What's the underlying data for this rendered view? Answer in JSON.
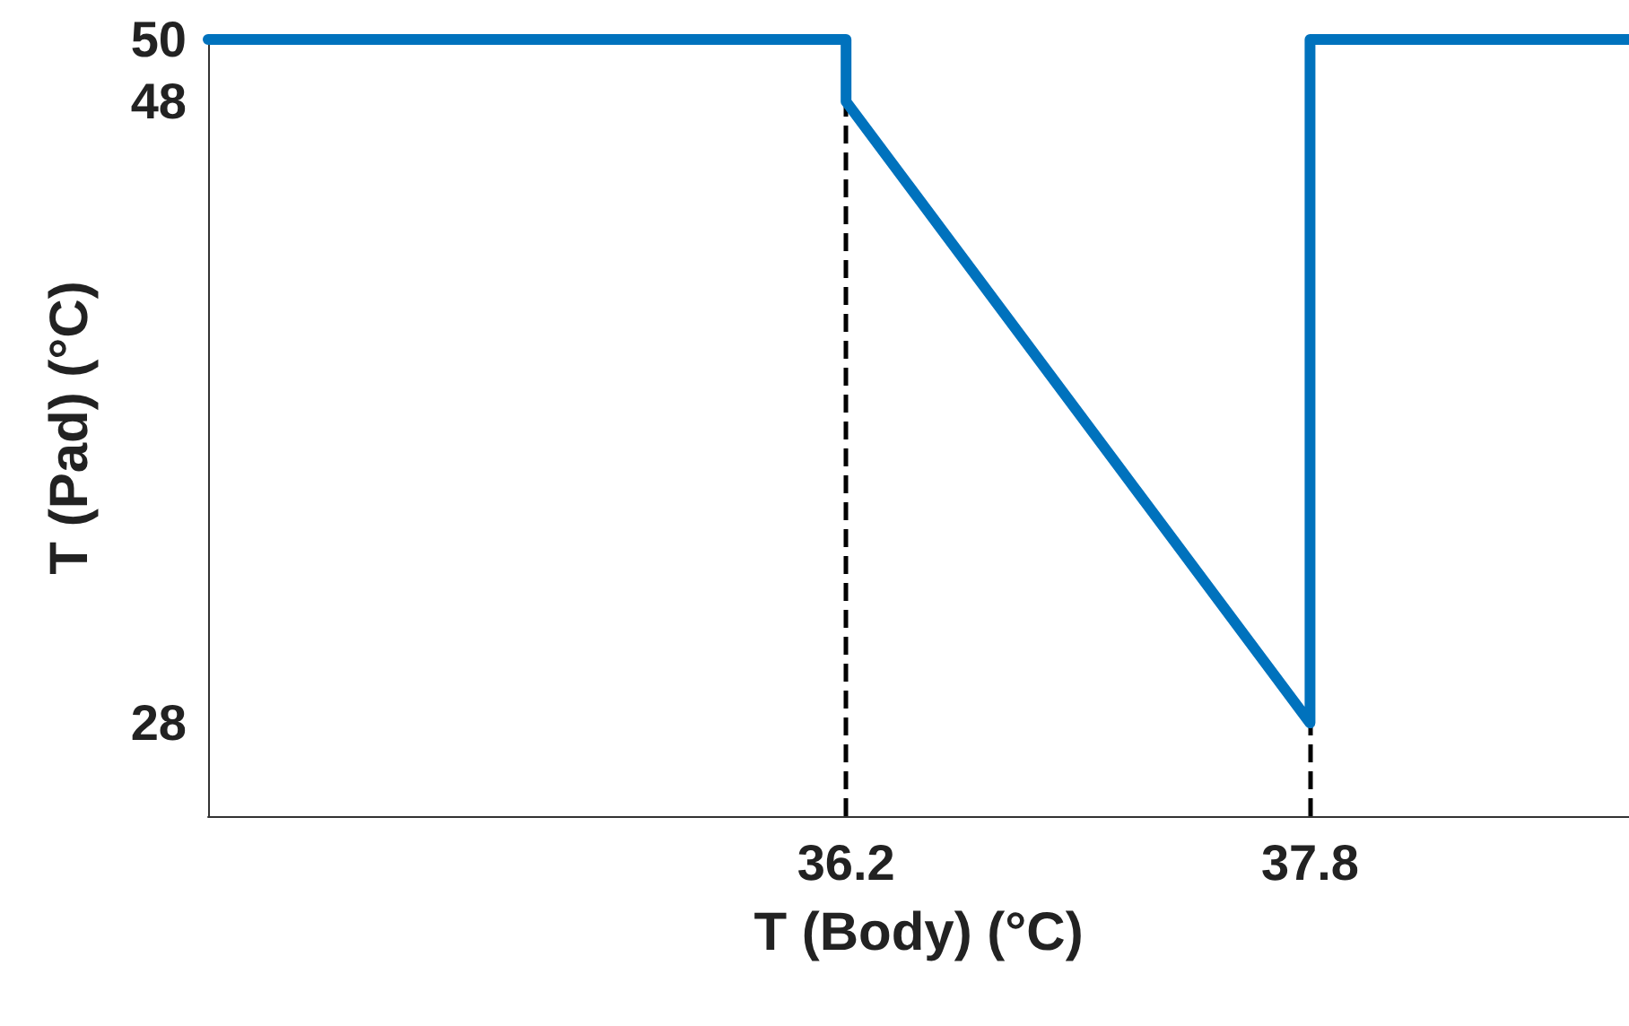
{
  "chart_data": {
    "type": "line",
    "xlabel": "T (Body) (°C)",
    "ylabel": "T (Pad) (°C)",
    "x": [
      34,
      36.2,
      36.2,
      37.8,
      37.8,
      38.9
    ],
    "series": [
      {
        "color": "#0072bd",
        "values": [
          50,
          50,
          48,
          28,
          50,
          50
        ]
      }
    ],
    "xlim": [
      34,
      38.9
    ],
    "ylim": [
      25,
      50
    ],
    "xticks": [
      36.2,
      37.8
    ],
    "yticks": [
      28,
      48,
      50
    ],
    "ref_lines": [
      {
        "axis": "x",
        "value": 36.2,
        "color": "#000000",
        "line_style": "dashed"
      },
      {
        "axis": "x",
        "value": 37.8,
        "color": "#000000",
        "line_style": "dashed"
      }
    ],
    "grid": false,
    "marker": "none",
    "line_style": "solid"
  }
}
